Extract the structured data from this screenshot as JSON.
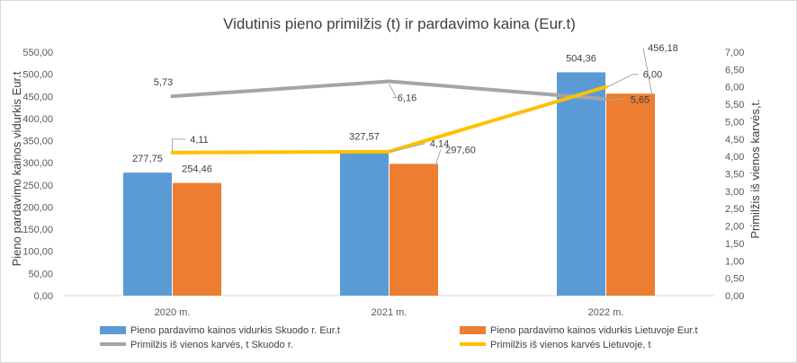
{
  "chart_data": {
    "type": "bar",
    "title": "Vidutinis pieno primilžis (t) ir pardavimo kaina (Eur.t)",
    "ylabel": "Pieno pardavimo kainos vidurkis Eur.t",
    "y2label": "Primilžis iš vienos karvės,t.",
    "categories": [
      "2020 m.",
      "2021 m.",
      "2022 m."
    ],
    "ylim": [
      0,
      550
    ],
    "y2lim": [
      0,
      7
    ],
    "yticks": [
      "0,00",
      "50,00",
      "100,00",
      "150,00",
      "200,00",
      "250,00",
      "300,00",
      "350,00",
      "400,00",
      "450,00",
      "500,00",
      "550,00"
    ],
    "y2ticks": [
      "0,00",
      "0,50",
      "1,00",
      "1,50",
      "2,00",
      "2,50",
      "3,00",
      "3,50",
      "4,00",
      "4,50",
      "5,00",
      "5,50",
      "6,00",
      "6,50",
      "7,00"
    ],
    "legend_position": "bottom",
    "grid": false,
    "series": [
      {
        "name": "Pieno pardavimo kainos vidurkis Skuodo r. Eur.t",
        "kind": "bar",
        "axis": "left",
        "color": "#5b9bd5",
        "values": [
          277.75,
          327.57,
          504.36
        ],
        "labels": [
          "277,75",
          "327,57",
          "504,36"
        ]
      },
      {
        "name": "Pieno pardavimo kainos vidurkis Lietuvoje Eur.t",
        "kind": "bar",
        "axis": "left",
        "color": "#ed7d31",
        "values": [
          254.46,
          297.6,
          456.18
        ],
        "labels": [
          "254,46",
          "297,60",
          "456,18"
        ]
      },
      {
        "name": "Primilžis iš vienos karvės, t   Skuodo r.",
        "kind": "line",
        "axis": "right",
        "color": "#a5a5a5",
        "values": [
          5.73,
          6.16,
          5.65
        ],
        "labels": [
          "5,73",
          "6,16",
          "5,65"
        ]
      },
      {
        "name": "Primilžis iš vienos karvės Lietuvoje, t",
        "kind": "line",
        "axis": "right",
        "color": "#ffc000",
        "values": [
          4.11,
          4.14,
          6.0
        ],
        "labels": [
          "4,11",
          "4,14",
          "6,00"
        ]
      }
    ]
  }
}
